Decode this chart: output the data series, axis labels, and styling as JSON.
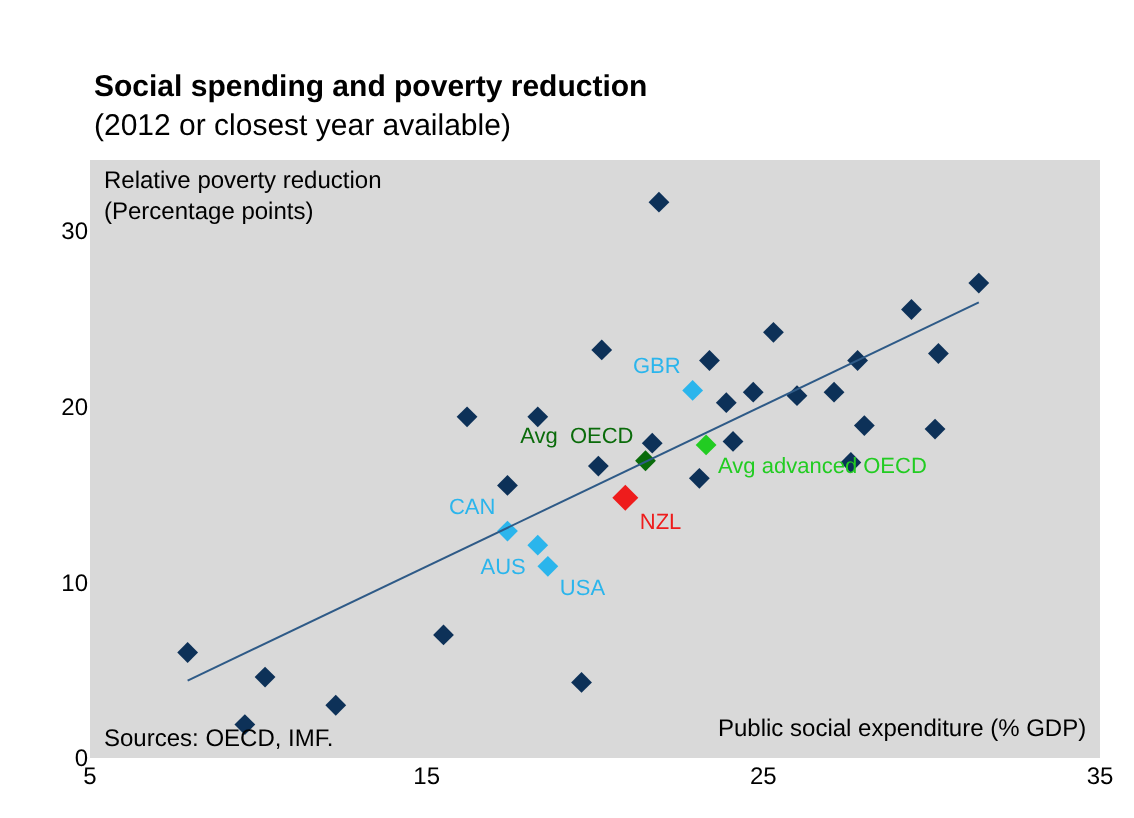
{
  "chart_data": {
    "type": "scatter",
    "title": "Social spending and poverty reduction",
    "subtitle": "(2012 or closest year available)",
    "xlabel": "Public social expenditure (% GDP)",
    "ylabel": "Relative poverty reduction\n(Percentage points)",
    "annotations": [
      "Sources: OECD, IMF."
    ],
    "xlim": [
      5,
      35
    ],
    "xticks": [
      5,
      15,
      25,
      35
    ],
    "ylim": [
      0,
      34
    ],
    "yticks": [
      0,
      10,
      20,
      30
    ],
    "grid": false,
    "legend": false,
    "marker": "diamond",
    "series": [
      {
        "color": "#0d3158",
        "x": [
          7.9,
          9.6,
          10.2,
          12.3,
          15.5,
          16.2,
          17.4,
          18.3,
          21.9,
          31.4,
          29.4,
          25.3,
          20.2,
          23.4,
          30.2,
          27.8,
          24.7,
          26.0,
          27.1,
          23.9,
          28.0,
          30.1,
          21.7,
          24.1,
          20.1,
          27.6,
          23.1,
          19.6
        ],
        "values": [
          6.0,
          1.9,
          4.6,
          3.0,
          7.0,
          19.4,
          15.5,
          19.4,
          31.6,
          27.0,
          25.5,
          24.2,
          23.2,
          22.6,
          23.0,
          22.6,
          20.8,
          20.6,
          20.8,
          20.2,
          18.9,
          18.7,
          17.9,
          18.0,
          16.6,
          16.8,
          15.9,
          4.3
        ]
      },
      {
        "name": "Avg  OECD",
        "color": "#0a6b0a",
        "x": [
          21.5
        ],
        "values": [
          16.9
        ]
      },
      {
        "name": "Avg advanced OECD",
        "color": "#22cc22",
        "x": [
          23.3
        ],
        "values": [
          17.8
        ]
      },
      {
        "name": "NZL",
        "color": "#ee1c1c",
        "x": [
          20.9
        ],
        "values": [
          14.8
        ]
      },
      {
        "name": "GBR",
        "color": "#2bb5ec",
        "x": [
          22.9
        ],
        "values": [
          20.9
        ]
      },
      {
        "name": "CAN",
        "color": "#2bb5ec",
        "x": [
          17.4
        ],
        "values": [
          12.9
        ]
      },
      {
        "name": "AUS",
        "color": "#2bb5ec",
        "x": [
          18.3
        ],
        "values": [
          12.1
        ]
      },
      {
        "name": "USA",
        "color": "#2bb5ec",
        "x": [
          18.6
        ],
        "values": [
          10.9
        ]
      },
      {
        "type": "line",
        "marker": "none",
        "color": "#2e5a87",
        "x": [
          7.9,
          31.4
        ],
        "values": [
          4.4,
          25.9
        ]
      }
    ]
  }
}
